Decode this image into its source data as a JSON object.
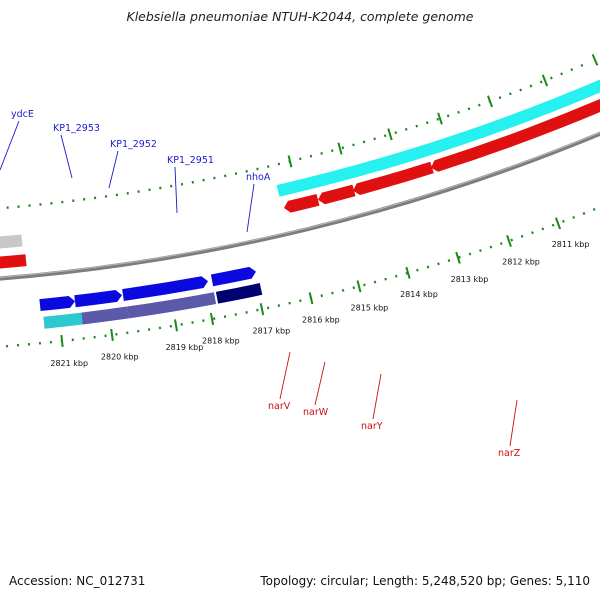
{
  "title": "Klebsiella pneumoniae NTUH-K2044, complete genome",
  "footer": {
    "accession": "Accession: NC_012731",
    "summary": "Topology: circular; Length: 5,248,520 bp; Genes: 5,110"
  },
  "scale_labels": [
    "2821 kbp",
    "2820 kbp",
    "2819 kbp",
    "2818 kbp",
    "2817 kbp",
    "2816 kbp",
    "2815 kbp",
    "2814 kbp",
    "2813 kbp",
    "2812 kbp",
    "2811 kbp"
  ],
  "forward_gene_labels": [
    "ydcE",
    "KP1_2953",
    "KP1_2952",
    "KP1_2951",
    "nhoA"
  ],
  "reverse_gene_labels": [
    "narV",
    "narW",
    "narY",
    "narZ"
  ],
  "colors": {
    "forward_cds": "#0a0ae0",
    "forward_dark": "#000070",
    "forward_cog": "#5a5aa8",
    "forward_cog_cyan": "#2ec8d0",
    "reverse_cds": "#e01010",
    "reverse_cog_cyan": "#27f0f0",
    "backbone": "#777777",
    "ticks": "#1a8a1a",
    "forward_label": "#1a1ad0",
    "reverse_label": "#cc1111"
  }
}
